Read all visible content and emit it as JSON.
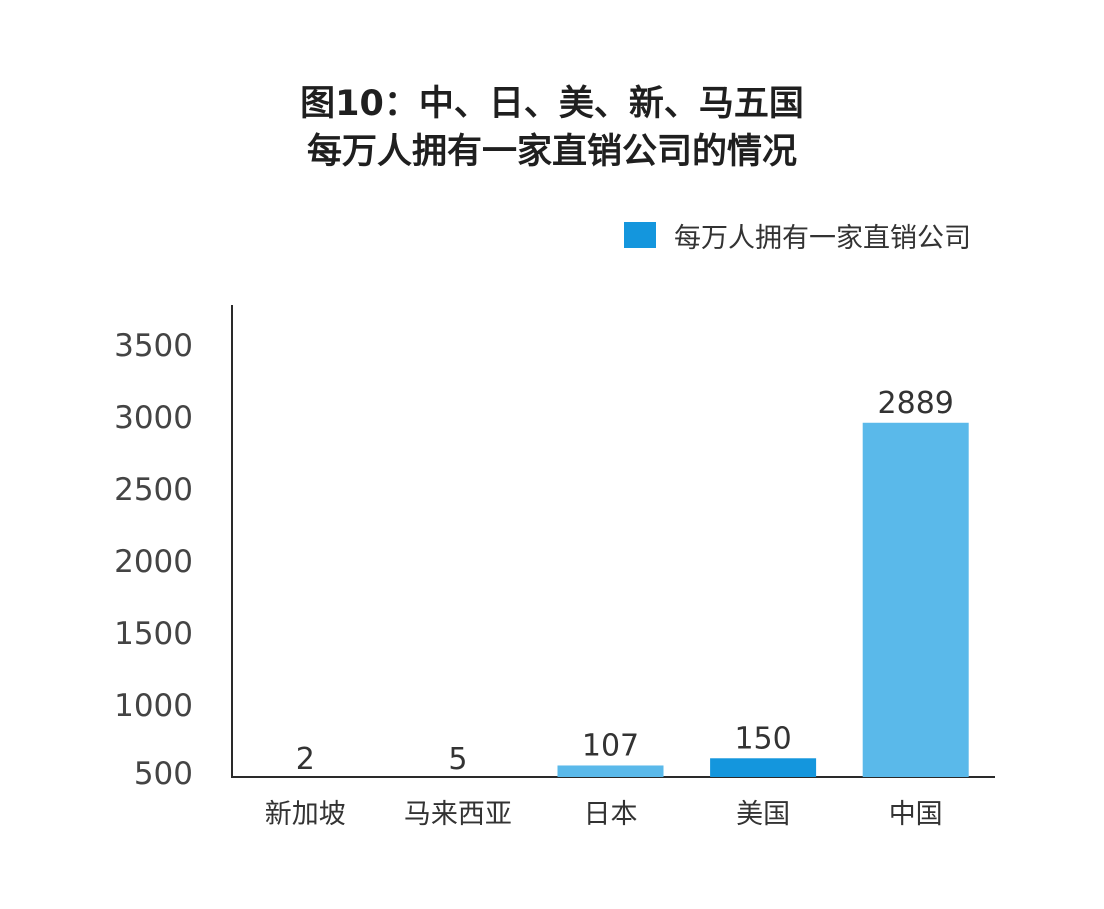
{
  "chart_data": {
    "type": "bar",
    "title_lines": [
      "图10：中、日、美、新、马五国",
      "每万人拥有一家直销公司的情况"
    ],
    "legend": [
      {
        "label": "每万人拥有一家直销公司",
        "color": "#1496dd"
      }
    ],
    "legend_position": "top-right",
    "categories": [
      "新加坡",
      "马来西亚",
      "日本",
      "美国",
      "中国"
    ],
    "values": [
      2,
      5,
      107,
      150,
      2889
    ],
    "value_labels": [
      "2",
      "5",
      "107",
      "150",
      "2889"
    ],
    "bar_colors": [
      "#5ab9ea",
      "#5ab9ea",
      "#5ab9ea",
      "#1496dd",
      "#5ab9ea"
    ],
    "y_ticks": [
      "500",
      "1000",
      "1500",
      "2000",
      "2500",
      "3000",
      "3500"
    ],
    "bar_tops_in_y_units": [
      0,
      0,
      580,
      630,
      2960
    ],
    "ylim": [
      500,
      3750
    ],
    "grid": false,
    "xlabel": "",
    "ylabel": ""
  }
}
